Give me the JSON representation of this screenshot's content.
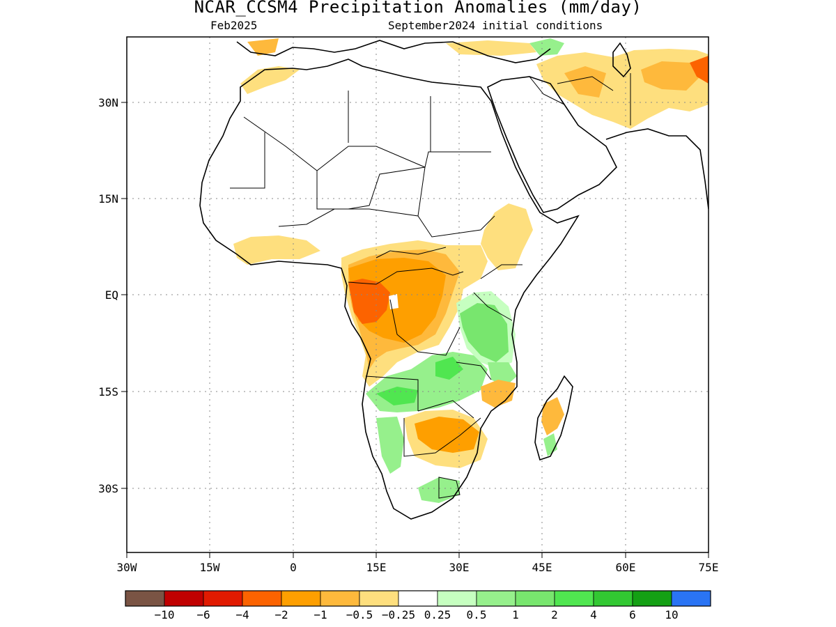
{
  "header": {
    "title": "NCAR_CCSM4 Precipitation Anomalies (mm/day)",
    "valid_month": "Feb2025",
    "initial_conditions": "September2024 initial conditions"
  },
  "map": {
    "region": "Africa and Arabian Peninsula",
    "projection": "cylindrical equidistant",
    "lon_range": [
      -30,
      75
    ],
    "lat_range": [
      -40,
      40
    ],
    "x_ticks": [
      {
        "lon": -30,
        "label": "30W"
      },
      {
        "lon": -15,
        "label": "15W"
      },
      {
        "lon": 0,
        "label": "0"
      },
      {
        "lon": 15,
        "label": "15E"
      },
      {
        "lon": 30,
        "label": "30E"
      },
      {
        "lon": 45,
        "label": "45E"
      },
      {
        "lon": 60,
        "label": "60E"
      },
      {
        "lon": 75,
        "label": "75E"
      }
    ],
    "y_ticks": [
      {
        "lat": 30,
        "label": "30N"
      },
      {
        "lat": 15,
        "label": "15N"
      },
      {
        "lat": 0,
        "label": "EQ"
      },
      {
        "lat": -15,
        "label": "15S"
      },
      {
        "lat": -30,
        "label": "30S"
      }
    ],
    "grid": "dotted"
  },
  "colorbar": {
    "colors": [
      "#7a5444",
      "#c00000",
      "#e11a00",
      "#fc6300",
      "#fe9f00",
      "#feb93c",
      "#fedf7e",
      "#ffffff",
      "#c6ffc0",
      "#96f08c",
      "#78e66e",
      "#50e650",
      "#32c832",
      "#14a014",
      "#2a74f4"
    ],
    "labels": [
      "−10",
      "−6",
      "−4",
      "−2",
      "−1",
      "−0.5",
      "−0.25",
      "0.25",
      "0.5",
      "1",
      "2",
      "4",
      "6",
      "10"
    ]
  },
  "anomalies": [
    {
      "name": "central-africa-dry",
      "level": -1,
      "color": "#fe9f00"
    },
    {
      "name": "congo-strong-dry",
      "level": -2,
      "color": "#fc6300"
    },
    {
      "name": "east-africa-wet",
      "level": 1,
      "color": "#78e66e"
    },
    {
      "name": "southern-africa-wet",
      "level": 0.5,
      "color": "#96f08c"
    },
    {
      "name": "south-east-africa-dry",
      "level": -1,
      "color": "#fe9f00"
    },
    {
      "name": "arabia-iran-dry",
      "level": -0.5,
      "color": "#feb93c"
    },
    {
      "name": "ethiopia-dry",
      "level": -0.5,
      "color": "#feb93c"
    },
    {
      "name": "madagascar-dry",
      "level": -0.5,
      "color": "#feb93c"
    }
  ]
}
